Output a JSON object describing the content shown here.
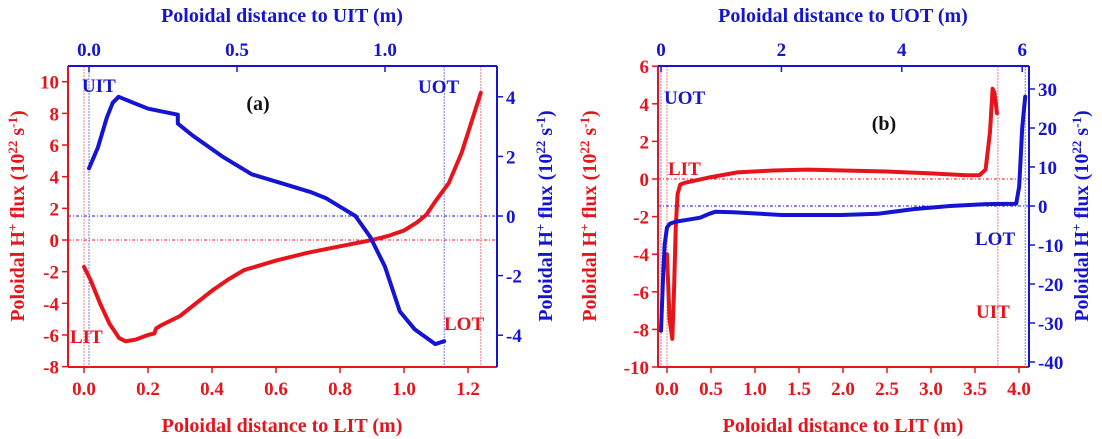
{
  "colors": {
    "red": "#e8141c",
    "blue": "#1414d2",
    "black": "#111111"
  },
  "chart_data": [
    {
      "type": "line",
      "panel_label": "(a)",
      "xlabel_bottom": "Poloidal distance to LIT (m)",
      "xlabel_top": "Poloidal distance to UIT (m)",
      "ylabel_left": "Poloidal H+ flux (10^22 s^-1)",
      "ylabel_right": "Poloidal H+ flux (10^22 s^-1)",
      "xlim_bottom": [
        -0.05,
        1.29
      ],
      "xlim_top": [
        -0.02,
        1.43
      ],
      "ylim_left": [
        -8,
        11
      ],
      "ylim_right": [
        -5,
        5
      ],
      "xticks_bottom": [
        "0.0",
        "0.2",
        "0.4",
        "0.6",
        "0.8",
        "1.0",
        "1.2"
      ],
      "xticks_top": [
        "0.0",
        "0.5",
        "1.0"
      ],
      "yticks_left": [
        "10",
        "8",
        "6",
        "4",
        "2",
        "0",
        "-2",
        "-4",
        "-6",
        "-8"
      ],
      "yticks_right": [
        "4",
        "2",
        "0",
        "-2",
        "-4"
      ],
      "annotations": [
        {
          "text": "UIT",
          "color": "blue"
        },
        {
          "text": "LIT",
          "color": "red"
        },
        {
          "text": "UOT",
          "color": "blue"
        },
        {
          "text": "LOT",
          "color": "red"
        }
      ],
      "vlines": {
        "lit_bottom_x": 0.0,
        "uit_top_x": 0.0,
        "uot_top_x": 1.2,
        "lot_bottom_x": 1.24
      },
      "hlines": {
        "left_zero": 0,
        "right_zero": 0
      },
      "series": [
        {
          "name": "Poloidal H+ flux vs distance to LIT",
          "axis": "left-bottom",
          "color": "red",
          "x": [
            0.0,
            0.02,
            0.05,
            0.08,
            0.11,
            0.13,
            0.16,
            0.2,
            0.22,
            0.225,
            0.24,
            0.3,
            0.4,
            0.45,
            0.5,
            0.6,
            0.7,
            0.8,
            0.9,
            0.95,
            1.0,
            1.04,
            1.07,
            1.1,
            1.14,
            1.18,
            1.24
          ],
          "y": [
            -1.7,
            -2.5,
            -4.0,
            -5.3,
            -6.2,
            -6.4,
            -6.3,
            -6.0,
            -5.9,
            -5.6,
            -5.4,
            -4.8,
            -3.2,
            -2.5,
            -1.9,
            -1.3,
            -0.8,
            -0.4,
            0.0,
            0.25,
            0.6,
            1.1,
            1.6,
            2.5,
            3.6,
            5.5,
            9.3
          ]
        },
        {
          "name": "Poloidal H+ flux vs distance to UIT",
          "axis": "right-top",
          "color": "blue",
          "x": [
            0.0,
            0.03,
            0.06,
            0.08,
            0.1,
            0.15,
            0.2,
            0.25,
            0.3,
            0.3,
            0.35,
            0.45,
            0.55,
            0.65,
            0.75,
            0.8,
            0.85,
            0.9,
            0.95,
            1.0,
            1.05,
            1.1,
            1.17,
            1.2
          ],
          "y": [
            1.6,
            2.3,
            3.3,
            3.8,
            4.0,
            3.8,
            3.6,
            3.5,
            3.4,
            3.1,
            2.7,
            2.0,
            1.4,
            1.1,
            0.8,
            0.6,
            0.3,
            0.0,
            -0.7,
            -1.7,
            -3.2,
            -3.8,
            -4.3,
            -4.2
          ]
        }
      ]
    },
    {
      "type": "line",
      "panel_label": "(b)",
      "xlabel_bottom": "Poloidal distance to LIT (m)",
      "xlabel_top": "Poloidal distance to UOT (m)",
      "ylabel_left": "Poloidal H+ flux (10^22 s^-1)",
      "ylabel_right": "Poloidal H+ flux (10^22 s^-1)",
      "xlim_bottom": [
        -0.1,
        4.1
      ],
      "xlim_top": [
        -0.1,
        6.1
      ],
      "ylim_left": [
        -10,
        6
      ],
      "ylim_right": [
        -40,
        30
      ],
      "xticks_bottom": [
        "0.0",
        "0.5",
        "1.0",
        "1.5",
        "2.0",
        "2.5",
        "3.0",
        "3.5",
        "4.0"
      ],
      "xticks_top": [
        "0",
        "2",
        "4",
        "6"
      ],
      "yticks_left": [
        "6",
        "4",
        "2",
        "0",
        "-2",
        "-4",
        "-6",
        "-8",
        "-10"
      ],
      "yticks_right": [
        "30",
        "20",
        "10",
        "0",
        "-10",
        "-20",
        "-30",
        "-40"
      ],
      "annotations": [
        {
          "text": "UOT",
          "color": "blue"
        },
        {
          "text": "LIT",
          "color": "red"
        },
        {
          "text": "LOT",
          "color": "blue"
        },
        {
          "text": "UIT",
          "color": "red"
        }
      ],
      "vlines": {
        "lit_bottom_x": 0.0,
        "uot_top_x": 0.0,
        "uit_bottom_x": 3.76,
        "lot_top_x": 6.05
      },
      "hlines": {
        "left_zero": 0,
        "right_zero": 0
      },
      "series": [
        {
          "name": "Poloidal H+ flux vs distance to LIT",
          "axis": "left-bottom",
          "color": "red",
          "x": [
            0.0,
            0.03,
            0.06,
            0.08,
            0.1,
            0.12,
            0.15,
            0.2,
            0.3,
            0.5,
            0.8,
            1.2,
            1.6,
            2.0,
            2.5,
            3.0,
            3.4,
            3.55,
            3.62,
            3.67,
            3.7,
            3.72,
            3.75
          ],
          "y": [
            -4.0,
            -7.5,
            -8.5,
            -6.0,
            -2.5,
            -0.8,
            -0.3,
            -0.2,
            -0.1,
            0.1,
            0.35,
            0.45,
            0.5,
            0.45,
            0.4,
            0.3,
            0.2,
            0.2,
            0.5,
            2.5,
            4.8,
            4.6,
            3.5
          ]
        },
        {
          "name": "Poloidal H+ flux vs distance to UOT",
          "axis": "right-top",
          "color": "blue",
          "x": [
            0.0,
            0.03,
            0.06,
            0.1,
            0.15,
            0.25,
            0.45,
            0.65,
            0.8,
            0.9,
            1.2,
            2.0,
            3.0,
            3.6,
            4.2,
            4.8,
            5.4,
            5.9,
            5.95,
            6.0,
            6.05
          ],
          "y": [
            -32.0,
            -20.0,
            -10.0,
            -5.5,
            -4.5,
            -4.0,
            -3.5,
            -3.0,
            -2.0,
            -1.5,
            -1.6,
            -2.3,
            -2.3,
            -2.0,
            -0.8,
            0.0,
            0.5,
            0.6,
            5.0,
            20.0,
            28.0
          ]
        }
      ]
    }
  ]
}
